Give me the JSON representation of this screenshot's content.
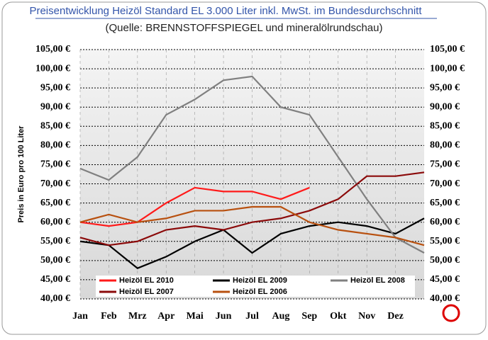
{
  "chart_data": {
    "type": "line",
    "title": "Preisentwicklung Heizöl Standard EL 3.000 Liter inkl. MwSt. im Bundesdurchschnitt",
    "subtitle": "(Quelle: BRENNSTOFFSPIEGEL und mineralölrundschau)",
    "y_label": "Preis in Euro pro 100 Liter",
    "x": [
      0,
      1,
      2,
      3,
      4,
      5,
      6,
      7,
      8,
      9,
      10,
      11,
      12
    ],
    "xlim": [
      0,
      12
    ],
    "xticks": [
      {
        "value": 0,
        "label": "Jan"
      },
      {
        "value": 1,
        "label": "Feb"
      },
      {
        "value": 2,
        "label": "Mrz"
      },
      {
        "value": 3,
        "label": "Apr"
      },
      {
        "value": 4,
        "label": "Mai"
      },
      {
        "value": 5,
        "label": "Jun"
      },
      {
        "value": 6,
        "label": "Jul"
      },
      {
        "value": 7,
        "label": "Aug"
      },
      {
        "value": 8,
        "label": "Sep"
      },
      {
        "value": 9,
        "label": "Okt"
      },
      {
        "value": 10,
        "label": "Nov"
      },
      {
        "value": 11,
        "label": "Dez"
      }
    ],
    "ylim": [
      40,
      105
    ],
    "yticks": [
      {
        "value": 40,
        "label": "40,00 €"
      },
      {
        "value": 45,
        "label": "45,00 €"
      },
      {
        "value": 50,
        "label": "50,00 €"
      },
      {
        "value": 55,
        "label": "55,00 €"
      },
      {
        "value": 60,
        "label": "60,00 €"
      },
      {
        "value": 65,
        "label": "65,00 €"
      },
      {
        "value": 70,
        "label": "70,00 €"
      },
      {
        "value": 75,
        "label": "75,00 €"
      },
      {
        "value": 80,
        "label": "80,00 €"
      },
      {
        "value": 85,
        "label": "85,00 €"
      },
      {
        "value": 90,
        "label": "90,00 €"
      },
      {
        "value": 95,
        "label": "95,00 €"
      },
      {
        "value": 100,
        "label": "100,00 €"
      },
      {
        "value": 105,
        "label": "105,00 €"
      }
    ],
    "grid": true,
    "series": [
      {
        "name": "Heizöl EL 2010",
        "color": "#ff1a1a",
        "values": [
          60,
          59,
          60,
          65,
          69,
          68,
          68,
          66,
          69,
          null,
          null,
          null,
          null
        ]
      },
      {
        "name": "Heizöl EL 2009",
        "color": "#000000",
        "values": [
          55,
          54,
          48,
          51,
          55,
          58,
          52,
          57,
          59,
          60,
          59,
          57,
          61
        ]
      },
      {
        "name": "Heizöl EL 2008",
        "color": "#808080",
        "values": [
          74,
          71,
          77,
          88,
          92,
          97,
          98,
          90,
          88,
          77,
          66,
          56,
          52
        ]
      },
      {
        "name": "Heizöl EL 2007",
        "color": "#8b0a0a",
        "values": [
          56,
          54,
          55,
          58,
          59,
          58,
          60,
          61,
          63,
          66,
          72,
          72,
          73
        ]
      },
      {
        "name": "Heizöl EL 2006",
        "color": "#b8500f",
        "values": [
          60,
          62,
          60,
          61,
          63,
          63,
          64,
          64,
          60,
          58,
          57,
          56,
          54
        ]
      }
    ]
  }
}
